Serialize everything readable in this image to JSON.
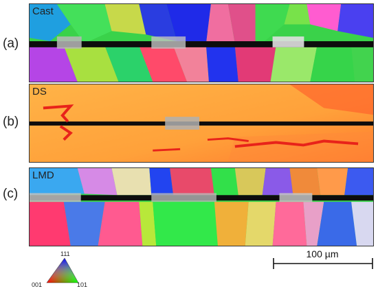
{
  "panels": [
    {
      "row_label": "(a)",
      "tag": "Cast"
    },
    {
      "row_label": "(b)",
      "tag": "DS"
    },
    {
      "row_label": "(c)",
      "tag": "LMD"
    }
  ],
  "legend": {
    "top": "111",
    "left": "001",
    "right": "101"
  },
  "scale_bar": {
    "label": "100 µm"
  },
  "colors": {
    "red": "#ff3333",
    "green": "#33dd44",
    "blue": "#2233ee",
    "orange": "#ffa030"
  }
}
